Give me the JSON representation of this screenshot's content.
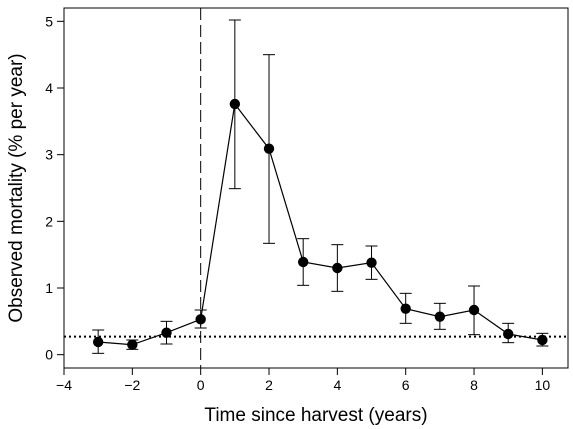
{
  "chart_data": {
    "type": "line",
    "xlabel": "Time since harvest (years)",
    "ylabel": "Observed mortality (% per year)",
    "xlim": [
      -4,
      10.75
    ],
    "ylim": [
      -0.2,
      5.2
    ],
    "x_ticks": [
      -4,
      -2,
      0,
      2,
      4,
      6,
      8,
      10
    ],
    "x_tick_labels": [
      "−4",
      "−2",
      "0",
      "2",
      "4",
      "6",
      "8",
      "10"
    ],
    "y_ticks": [
      0,
      1,
      2,
      3,
      4,
      5
    ],
    "y_tick_labels": [
      "0",
      "1",
      "2",
      "3",
      "4",
      "5"
    ],
    "grid": false,
    "harvest_line_x": 0,
    "baseline_y": 0.27,
    "series": [
      {
        "points": [
          {
            "x": -3,
            "y": 0.19,
            "lo": 0.02,
            "hi": 0.37
          },
          {
            "x": -2,
            "y": 0.15,
            "lo": 0.08,
            "hi": 0.22
          },
          {
            "x": -1,
            "y": 0.33,
            "lo": 0.16,
            "hi": 0.5
          },
          {
            "x": 0,
            "y": 0.53,
            "lo": 0.4,
            "hi": 0.67
          },
          {
            "x": 1,
            "y": 3.76,
            "lo": 2.49,
            "hi": 5.02
          },
          {
            "x": 2,
            "y": 3.09,
            "lo": 1.67,
            "hi": 4.5
          },
          {
            "x": 3,
            "y": 1.39,
            "lo": 1.04,
            "hi": 1.74
          },
          {
            "x": 4,
            "y": 1.3,
            "lo": 0.95,
            "hi": 1.65
          },
          {
            "x": 5,
            "y": 1.38,
            "lo": 1.13,
            "hi": 1.63
          },
          {
            "x": 6,
            "y": 0.69,
            "lo": 0.47,
            "hi": 0.92
          },
          {
            "x": 7,
            "y": 0.57,
            "lo": 0.38,
            "hi": 0.77
          },
          {
            "x": 8,
            "y": 0.67,
            "lo": 0.3,
            "hi": 1.03
          },
          {
            "x": 9,
            "y": 0.31,
            "lo": 0.18,
            "hi": 0.47
          },
          {
            "x": 10,
            "y": 0.22,
            "lo": 0.13,
            "hi": 0.32
          }
        ]
      }
    ]
  }
}
